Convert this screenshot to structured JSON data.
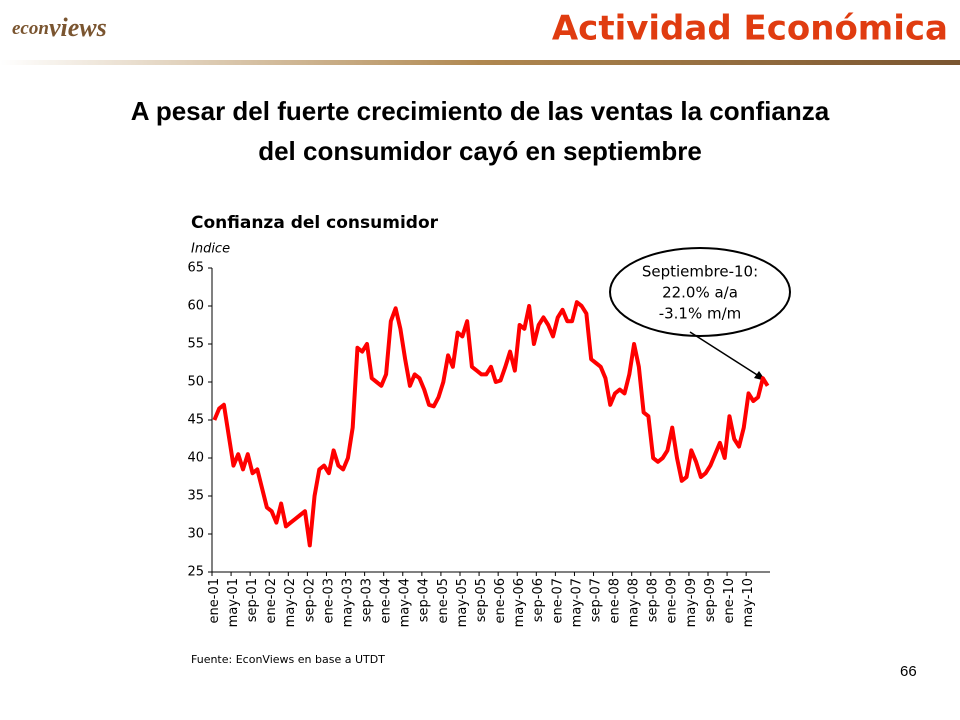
{
  "header": {
    "brand_a": "econ",
    "brand_b": "views",
    "section": "Actividad Económica"
  },
  "headline": [
    "A pesar del fuerte crecimiento de las ventas la confianza",
    "del consumidor cayó en septiembre"
  ],
  "chart_data": {
    "type": "line",
    "title": "Confianza del consumidor",
    "y_label": "Indice",
    "categories": [
      "ene-01",
      null,
      null,
      null,
      "may-01",
      null,
      null,
      null,
      "sep-01",
      null,
      null,
      null,
      "ene-02",
      null,
      null,
      null,
      "may-02",
      null,
      null,
      null,
      "sep-02",
      null,
      null,
      null,
      "ene-03",
      null,
      null,
      null,
      "may-03",
      null,
      null,
      null,
      "sep-03",
      null,
      null,
      null,
      "ene-04",
      null,
      null,
      null,
      "may-04",
      null,
      null,
      null,
      "sep-04",
      null,
      null,
      null,
      "ene-05",
      null,
      null,
      null,
      "may-05",
      null,
      null,
      null,
      "sep-05",
      null,
      null,
      null,
      "ene-06",
      null,
      null,
      null,
      "may-06",
      null,
      null,
      null,
      "sep-06",
      null,
      null,
      null,
      "ene-07",
      null,
      null,
      null,
      "may-07",
      null,
      null,
      null,
      "sep-07",
      null,
      null,
      null,
      "ene-08",
      null,
      null,
      null,
      "may-08",
      null,
      null,
      null,
      "sep-08",
      null,
      null,
      null,
      "ene-09",
      null,
      null,
      null,
      "may-09",
      null,
      null,
      null,
      "sep-09",
      null,
      null,
      null,
      "ene-10",
      null,
      null,
      null,
      "may-10",
      null,
      null,
      null,
      null
    ],
    "series": [
      {
        "name": "Confianza del consumidor",
        "color": "#ff0000",
        "values": [
          45,
          46.5,
          47,
          43,
          39,
          40.5,
          38.5,
          40.5,
          38,
          38.5,
          36,
          33.5,
          33,
          31.5,
          34,
          31,
          31.5,
          32,
          32.5,
          33,
          28.5,
          35,
          38.5,
          39,
          38,
          41,
          39,
          38.5,
          40,
          44,
          54.5,
          54,
          55,
          50.5,
          50,
          49.5,
          51,
          58,
          59.7,
          57,
          53,
          49.5,
          51,
          50.5,
          49,
          47,
          46.8,
          48,
          50,
          53.5,
          52,
          56.5,
          56,
          58,
          52,
          51.5,
          51,
          51,
          52,
          50,
          50.2,
          52,
          54,
          51.5,
          57.5,
          57,
          60,
          55,
          57.5,
          58.5,
          57.5,
          56,
          58.5,
          59.5,
          58,
          58,
          60.5,
          60,
          59,
          53,
          52.5,
          52,
          50.5,
          47,
          48.5,
          49,
          48.5,
          51,
          55,
          52,
          46,
          45.5,
          40,
          39.5,
          40,
          41,
          44,
          40,
          37,
          37.5,
          41,
          39.5,
          37.5,
          38,
          39,
          40.5,
          42,
          40,
          45.5,
          42.5,
          41.5,
          44,
          48.5,
          47.5,
          48,
          50.5,
          49.5
        ]
      }
    ],
    "ylim": [
      25,
      65
    ],
    "yticks": [
      25,
      30,
      35,
      40,
      45,
      50,
      55,
      60,
      65
    ],
    "annotation": [
      "Septiembre-10:",
      "22.0% a/a",
      "-3.1% m/m"
    ],
    "source": "Fuente: EconViews en base a UTDT"
  },
  "page_number": "66"
}
